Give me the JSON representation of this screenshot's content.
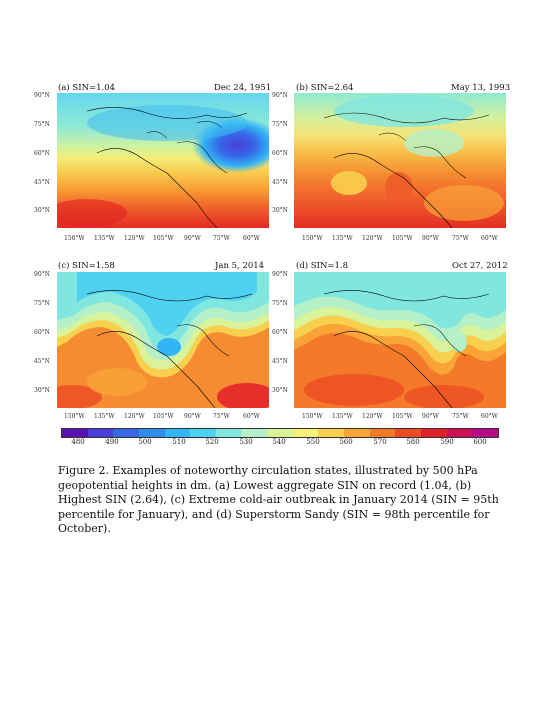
{
  "panels": [
    {
      "label": "(a) SIN=1.04",
      "date": "Dec 24, 1951",
      "lat_labels": [
        "90°N",
        "75°N",
        "60°N",
        "45°N",
        "30°N"
      ],
      "lon_labels": [
        "150°W",
        "135°W",
        "120°W",
        "105°W",
        "90°W",
        "75°W",
        "60°W"
      ]
    },
    {
      "label": "(b) SIN=2.64",
      "date": "May 13, 1993",
      "lat_labels": [
        "90°N",
        "75°N",
        "60°N",
        "45°N",
        "30°N"
      ],
      "lon_labels": [
        "150°W",
        "135°W",
        "120°W",
        "105°W",
        "90°W",
        "75°W",
        "60°W"
      ]
    },
    {
      "label": "(c) SIN=1.58",
      "date": "Jan 5, 2014",
      "lat_labels": [
        "90°N",
        "75°N",
        "60°N",
        "45°N",
        "30°N"
      ],
      "lon_labels": [
        "150°W",
        "135°W",
        "120°W",
        "105°W",
        "90°W",
        "75°W",
        "60°W"
      ]
    },
    {
      "label": "(d) SIN=1.8",
      "date": "Oct 27, 2012",
      "lat_labels": [
        "90°N",
        "75°N",
        "60°N",
        "45°N",
        "30°N"
      ],
      "lon_labels": [
        "150°W",
        "135°W",
        "120°W",
        "105°W",
        "90°W",
        "75°W",
        "60°W"
      ]
    }
  ],
  "colorbar": {
    "ticks": [
      "480",
      "490",
      "500",
      "510",
      "520",
      "530",
      "540",
      "550",
      "560",
      "570",
      "580",
      "590",
      "600"
    ],
    "colors": [
      "#5a0fb0",
      "#4a3ed8",
      "#3567e8",
      "#2f8ef0",
      "#33b4f5",
      "#4fd1f2",
      "#7fe6e0",
      "#b4f0c8",
      "#d8f39a",
      "#f4f07a",
      "#f9cf4e",
      "#f8a437",
      "#f47a2a",
      "#ee4b24",
      "#e31f2a",
      "#cf0f55",
      "#b40a86"
    ]
  },
  "caption": "Figure 2. Examples of noteworthy circulation states, illustrated by 500 hPa geopotential heights in dm. (a) Lowest aggregate SIN on record (1.04, (b) Highest SIN (2.64), (c) Extreme cold-air outbreak in January 2014 (SIN = 95th percentile for January), and (d) Superstorm Sandy (SIN = 98th percentile for October)."
}
